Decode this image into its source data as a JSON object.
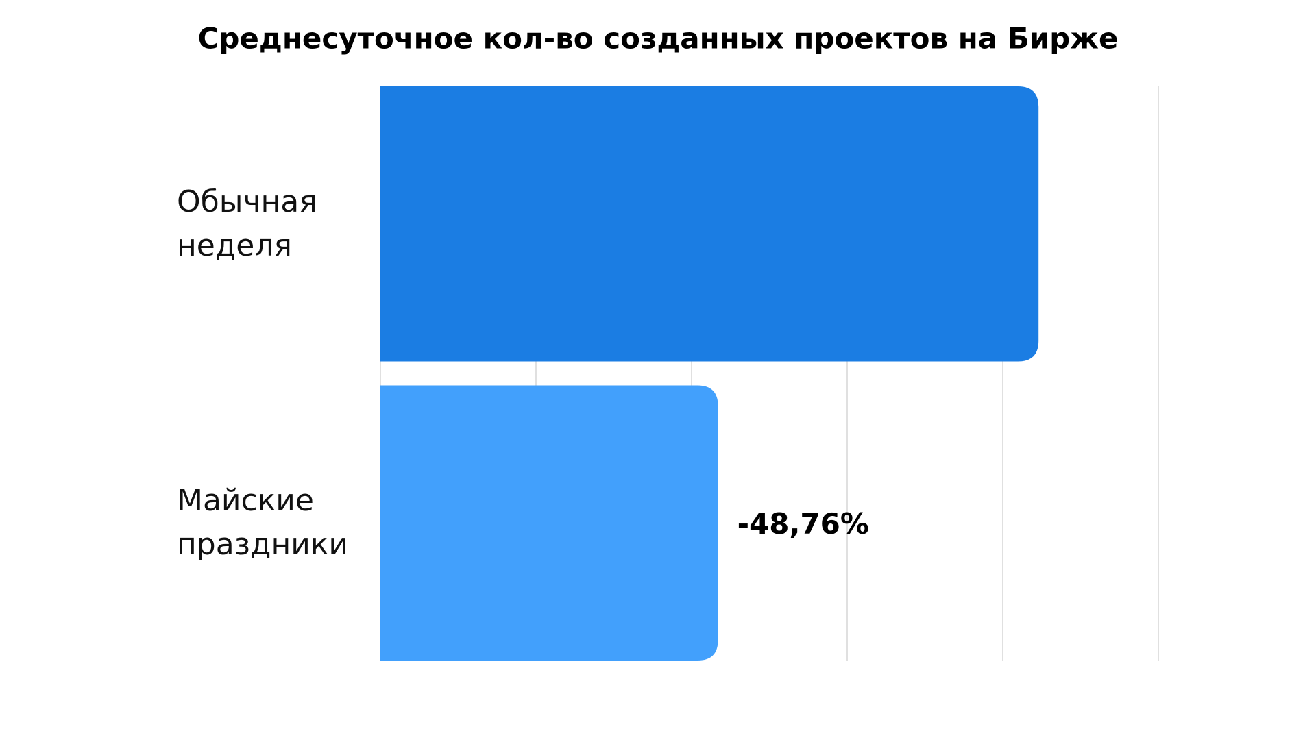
{
  "chart_data": {
    "type": "bar",
    "orientation": "horizontal",
    "title": "Среднесуточное кол-во созданных проектов на Бирже",
    "categories": [
      "Обычная неделя",
      "Майские праздники"
    ],
    "values": [
      4.23,
      2.17
    ],
    "colors": [
      "#1b7de3",
      "#42a0fc"
    ],
    "xlim": [
      0,
      5
    ],
    "xticks": [
      0,
      1,
      2,
      3,
      4,
      5
    ],
    "grid": true,
    "annotation": "-48,76%"
  }
}
